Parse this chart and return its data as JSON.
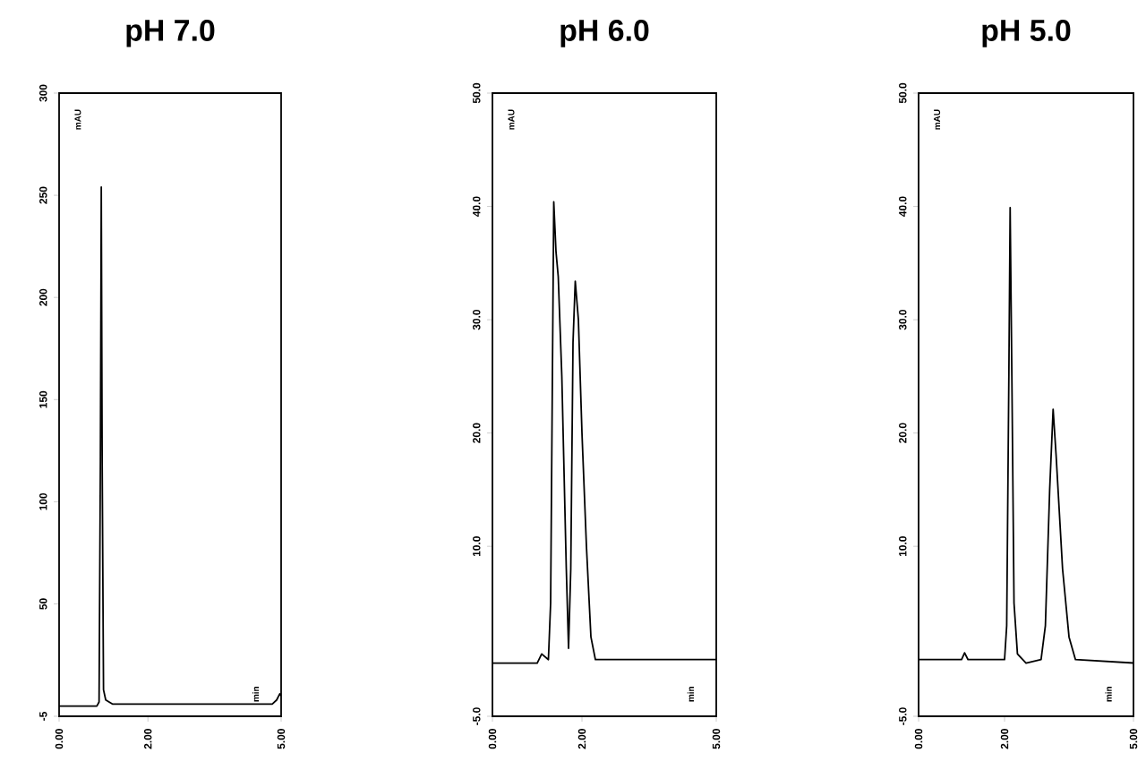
{
  "chart_data": [
    {
      "type": "line",
      "title": "pH  7.0",
      "annotations": [
        "min"
      ],
      "ylabel": "mAU",
      "color": "#000000",
      "x": [
        0,
        0.85,
        0.9,
        0.93,
        0.95,
        0.97,
        1.0,
        1.05,
        1.2,
        2.5,
        4.8,
        4.9,
        4.97,
        5
      ],
      "values": [
        0,
        0,
        2,
        120,
        254,
        120,
        8,
        3,
        1,
        1,
        1,
        3,
        6,
        5
      ],
      "xlim": [
        0,
        5
      ],
      "ylim": [
        -5,
        300
      ],
      "xticks": [
        {
          "value": 0,
          "label": "0.00"
        },
        {
          "value": 2,
          "label": "2.00"
        },
        {
          "value": 5,
          "label": "5.00"
        }
      ],
      "yticks": [
        -5,
        50,
        100,
        150,
        200,
        250,
        300
      ]
    },
    {
      "type": "line",
      "title": "pH  6.0",
      "annotations": [
        "min"
      ],
      "ylabel": "mAU",
      "color": "#000000",
      "x": [
        0,
        1.0,
        1.1,
        1.25,
        1.3,
        1.37,
        1.42,
        1.47,
        1.55,
        1.65,
        1.7,
        1.75,
        1.8,
        1.85,
        1.92,
        2.0,
        2.1,
        2.2,
        2.3,
        5
      ],
      "values": [
        -0.3,
        -0.3,
        0.5,
        0,
        5,
        40.4,
        36,
        33.8,
        25,
        8,
        1,
        8,
        28,
        33.4,
        30,
        20,
        10,
        2,
        0,
        0
      ],
      "xlim": [
        0,
        5
      ],
      "ylim": [
        -5,
        50
      ],
      "xticks": [
        {
          "value": 0,
          "label": "0.00"
        },
        {
          "value": 2,
          "label": "2.00"
        },
        {
          "value": 5,
          "label": "5.00"
        }
      ],
      "yticks": [
        {
          "value": -5,
          "label": "-5.0"
        },
        {
          "value": 10,
          "label": "10.0"
        },
        {
          "value": 20,
          "label": "20.0"
        },
        {
          "value": 30,
          "label": "30.0"
        },
        {
          "value": 40,
          "label": "40.0"
        },
        {
          "value": 50,
          "label": "50.0"
        }
      ]
    },
    {
      "type": "line",
      "title": "pH  5.0",
      "annotations": [
        "min"
      ],
      "ylabel": "mAU",
      "color": "#000000",
      "x": [
        0,
        1.0,
        1.07,
        1.15,
        2.0,
        2.05,
        2.1,
        2.13,
        2.17,
        2.22,
        2.3,
        2.5,
        2.85,
        2.95,
        3.05,
        3.13,
        3.2,
        3.35,
        3.5,
        3.65,
        5
      ],
      "values": [
        0,
        0,
        0.6,
        0,
        0,
        3,
        25,
        39.9,
        25,
        5,
        0.5,
        -0.3,
        0,
        3,
        15,
        22.1,
        18,
        8,
        2,
        0,
        -0.3
      ],
      "xlim": [
        0,
        5
      ],
      "ylim": [
        -5,
        50
      ],
      "xticks": [
        {
          "value": 0,
          "label": "0.00"
        },
        {
          "value": 2,
          "label": "2.00"
        },
        {
          "value": 5,
          "label": "5.00"
        }
      ],
      "yticks": [
        {
          "value": -5,
          "label": "-5.0"
        },
        {
          "value": 10,
          "label": "10.0"
        },
        {
          "value": 20,
          "label": "20.0"
        },
        {
          "value": 30,
          "label": "30.0"
        },
        {
          "value": 40,
          "label": "40.0"
        },
        {
          "value": 50,
          "label": "50.0"
        }
      ]
    }
  ]
}
